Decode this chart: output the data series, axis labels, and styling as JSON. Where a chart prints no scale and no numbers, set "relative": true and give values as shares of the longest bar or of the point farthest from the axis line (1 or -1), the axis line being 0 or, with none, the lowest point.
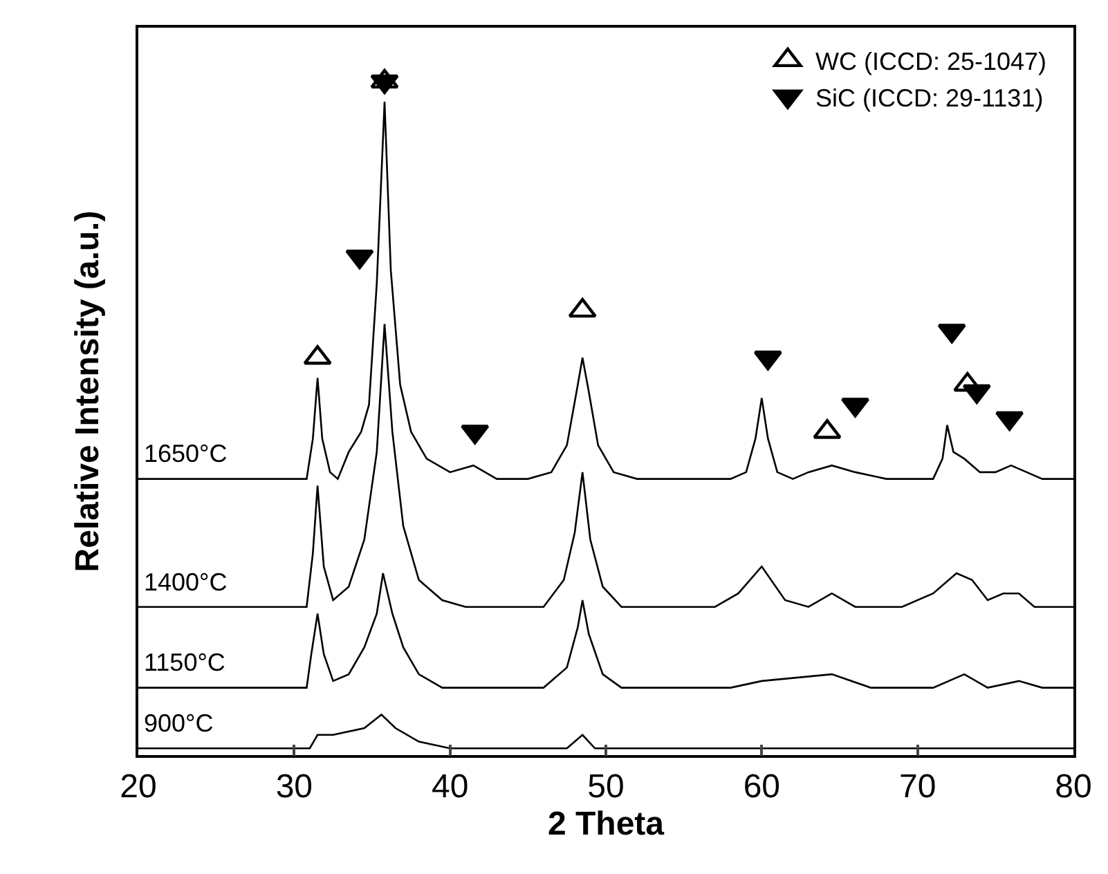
{
  "chart_data": {
    "type": "line",
    "xlabel": "2 Theta",
    "ylabel": "Relative Intensity (a.u.)",
    "relative": true,
    "xlim": [
      20,
      80
    ],
    "xticks": [
      20,
      30,
      40,
      50,
      60,
      70,
      80
    ],
    "tick_labels": "x",
    "legend": "top right",
    "series": [
      {
        "name": "1650°C",
        "marker": "none",
        "color": "#000000",
        "x": [
          20,
          30,
          30.8,
          31.2,
          31.5,
          31.8,
          32.3,
          32.8,
          33.5,
          34.3,
          34.8,
          35.3,
          35.8,
          36.2,
          36.8,
          37.5,
          38.5,
          40,
          41.5,
          43,
          45,
          46.5,
          47.5,
          48.2,
          48.5,
          48.9,
          49.5,
          50.5,
          52,
          58,
          59,
          59.6,
          60,
          60.4,
          61,
          62,
          63,
          64.5,
          66,
          68,
          71,
          71.6,
          71.9,
          72.3,
          73,
          74,
          75,
          76,
          77,
          78,
          80
        ],
        "values": [
          0.41,
          0.41,
          0.41,
          0.47,
          0.56,
          0.47,
          0.42,
          0.41,
          0.45,
          0.48,
          0.52,
          0.7,
          0.97,
          0.72,
          0.55,
          0.48,
          0.44,
          0.42,
          0.43,
          0.41,
          0.41,
          0.42,
          0.46,
          0.55,
          0.59,
          0.54,
          0.46,
          0.42,
          0.41,
          0.41,
          0.42,
          0.47,
          0.53,
          0.47,
          0.42,
          0.41,
          0.42,
          0.43,
          0.42,
          0.41,
          0.41,
          0.44,
          0.49,
          0.45,
          0.44,
          0.42,
          0.42,
          0.43,
          0.42,
          0.41,
          0.41
        ]
      },
      {
        "name": "1400°C",
        "marker": "none",
        "color": "#000000",
        "x": [
          20,
          30.8,
          31.2,
          31.5,
          31.9,
          32.5,
          33.5,
          34.5,
          35.3,
          35.8,
          36.3,
          37,
          38,
          39.5,
          41,
          46,
          47.3,
          48,
          48.5,
          49,
          49.8,
          51,
          57,
          58.5,
          60,
          61.5,
          63,
          64.5,
          66,
          69,
          71,
          72.5,
          73.5,
          74.5,
          75.5,
          76.5,
          77.5,
          80
        ],
        "values": [
          0.22,
          0.22,
          0.3,
          0.4,
          0.28,
          0.23,
          0.25,
          0.32,
          0.45,
          0.64,
          0.48,
          0.34,
          0.26,
          0.23,
          0.22,
          0.22,
          0.26,
          0.33,
          0.42,
          0.32,
          0.25,
          0.22,
          0.22,
          0.24,
          0.28,
          0.23,
          0.22,
          0.24,
          0.22,
          0.22,
          0.24,
          0.27,
          0.26,
          0.23,
          0.24,
          0.24,
          0.22,
          0.22
        ]
      },
      {
        "name": "1150°C",
        "marker": "none",
        "color": "#000000",
        "x": [
          20,
          30.8,
          31.1,
          31.5,
          31.9,
          32.5,
          33.5,
          34.5,
          35.3,
          35.7,
          36.3,
          37,
          38,
          39.5,
          46,
          47.5,
          48.2,
          48.5,
          48.9,
          49.8,
          51,
          58,
          60,
          64.5,
          67,
          71,
          73,
          74.5,
          76.5,
          78,
          80
        ],
        "values": [
          0.1,
          0.1,
          0.15,
          0.21,
          0.15,
          0.11,
          0.12,
          0.16,
          0.21,
          0.27,
          0.21,
          0.16,
          0.12,
          0.1,
          0.1,
          0.13,
          0.19,
          0.23,
          0.18,
          0.12,
          0.1,
          0.1,
          0.11,
          0.12,
          0.1,
          0.1,
          0.12,
          0.1,
          0.11,
          0.1,
          0.1
        ]
      },
      {
        "name": "900°C",
        "marker": "none",
        "color": "#000000",
        "x": [
          20,
          31,
          31.5,
          32.5,
          34.5,
          35.6,
          36.5,
          38,
          40,
          47.5,
          48.5,
          49.3,
          80
        ],
        "values": [
          0.01,
          0.01,
          0.03,
          0.03,
          0.04,
          0.06,
          0.04,
          0.02,
          0.01,
          0.01,
          0.03,
          0.01,
          0.01
        ]
      },
      {
        "name": "WC (ICCD: 25-1047)",
        "type": "scatter",
        "marker": "triangle",
        "color": "#000000",
        "x": [
          31.5,
          35.8,
          48.5,
          64.2,
          73.2
        ],
        "values": [
          0.59,
          1.0,
          0.66,
          0.48,
          0.55
        ]
      },
      {
        "name": "SiC (ICCD: 29-1131)",
        "type": "scatter",
        "marker": "triangle-down",
        "color": "#000000",
        "x": [
          34.2,
          35.8,
          41.6,
          60.4,
          66.0,
          72.2,
          73.8,
          75.9
        ],
        "values": [
          0.74,
          1.0,
          0.48,
          0.59,
          0.52,
          0.63,
          0.54,
          0.5
        ]
      }
    ]
  }
}
